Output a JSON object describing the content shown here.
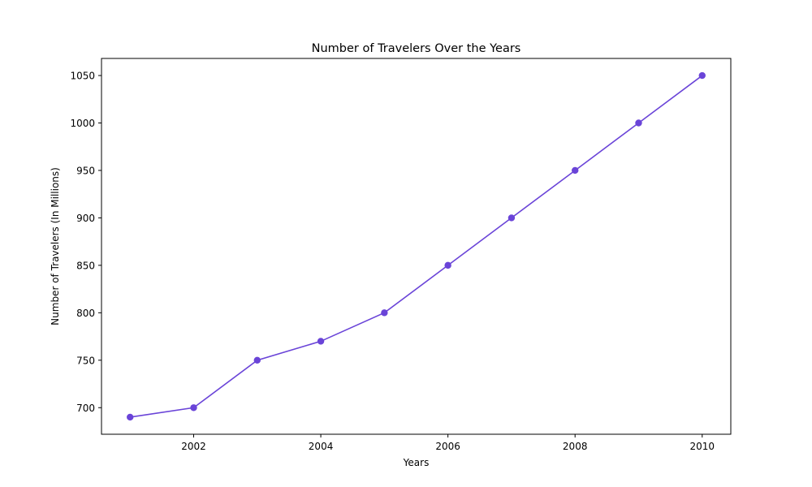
{
  "chart_data": {
    "type": "line",
    "title": "Number of Travelers Over the Years",
    "xlabel": "Years",
    "ylabel": "Number of Travelers (In Millions)",
    "x": [
      2001,
      2002,
      2003,
      2004,
      2005,
      2006,
      2007,
      2008,
      2009,
      2010
    ],
    "series": [
      {
        "values": [
          690,
          700,
          750,
          770,
          800,
          850,
          900,
          950,
          1000,
          1050
        ]
      }
    ],
    "xlim": [
      2000.55,
      2010.45
    ],
    "ylim": [
      672,
      1068
    ],
    "xticks": [
      2002,
      2004,
      2006,
      2008,
      2010
    ],
    "yticks": [
      700,
      750,
      800,
      850,
      900,
      950,
      1000,
      1050
    ],
    "grid": false,
    "line_color": "#6a44d8",
    "marker": "circle"
  }
}
